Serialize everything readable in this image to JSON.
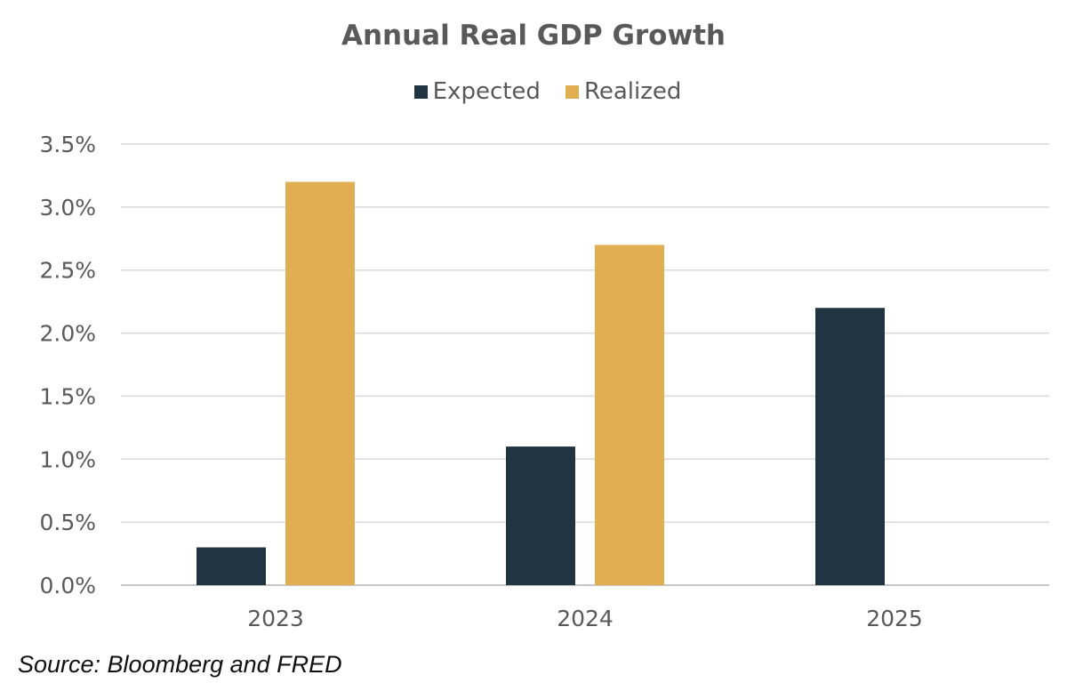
{
  "chart_data": {
    "type": "bar",
    "title": "Annual Real GDP Growth",
    "categories": [
      "2023",
      "2024",
      "2025"
    ],
    "series": [
      {
        "name": "Expected",
        "color": "#203442",
        "values": [
          0.3,
          1.1,
          2.2
        ]
      },
      {
        "name": "Realized",
        "color": "#E2AE52",
        "values": [
          3.2,
          2.7,
          null
        ]
      }
    ],
    "xlabel": "",
    "ylabel": "",
    "ylim": [
      0,
      3.5
    ],
    "yticks": [
      "0.0%",
      "0.5%",
      "1.0%",
      "1.5%",
      "2.0%",
      "2.5%",
      "3.0%",
      "3.5%"
    ],
    "grid": true,
    "legend_position": "top"
  },
  "source": "Source: Bloomberg and FRED"
}
